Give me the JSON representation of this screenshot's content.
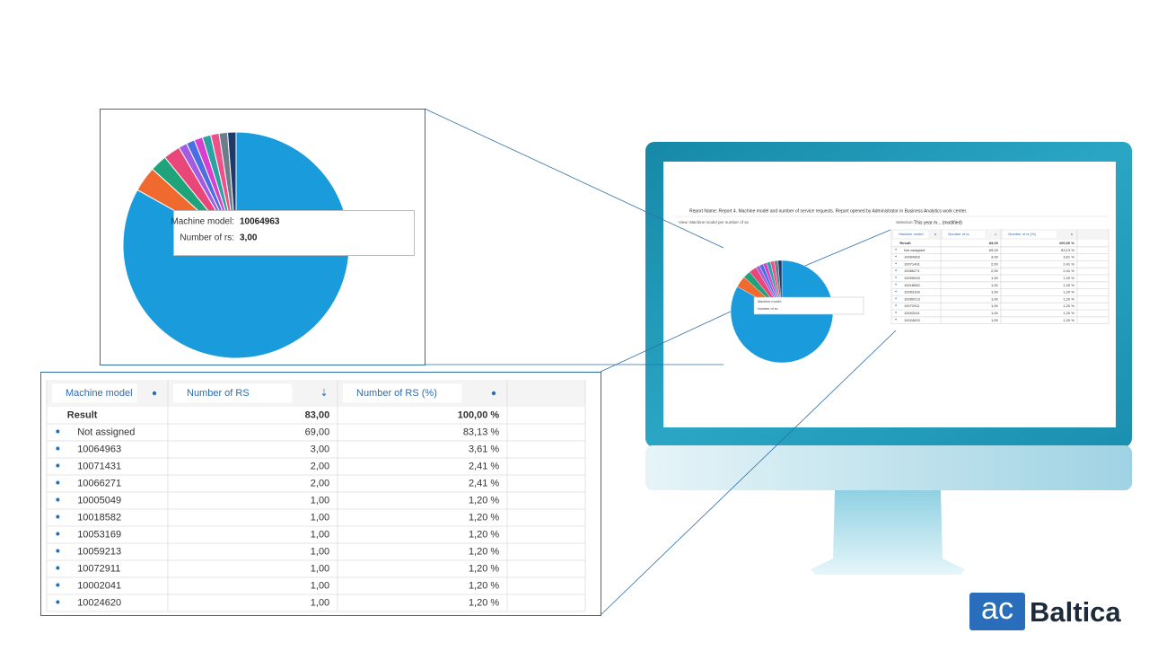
{
  "zoom_pie": {
    "tooltip": {
      "label1": "Machine model:",
      "value1": "10064963",
      "label2": "Number of rs:",
      "value2": "3,00"
    },
    "slice_colors": [
      "#1a9bdc",
      "#f06a2f",
      "#1fa37a",
      "#e9467a",
      "#a35be0",
      "#4b6fe0",
      "#d63fd0",
      "#2aa3a3",
      "#f0508a",
      "#6d7d8a",
      "#1d3a6b"
    ]
  },
  "table": {
    "headers": [
      "Machine model",
      "Number of RS",
      "Number of RS (%)"
    ],
    "rows": [
      [
        "Result",
        "83,00",
        "100,00 %"
      ],
      [
        "Not assigned",
        "69,00",
        "83,13 %"
      ],
      [
        "10064963",
        "3,00",
        "3,61 %"
      ],
      [
        "10071431",
        "2,00",
        "2,41 %"
      ],
      [
        "10066271",
        "2,00",
        "2,41 %"
      ],
      [
        "10005049",
        "1,00",
        "1,20 %"
      ],
      [
        "10018582",
        "1,00",
        "1,20 %"
      ],
      [
        "10053169",
        "1,00",
        "1,20 %"
      ],
      [
        "10059213",
        "1,00",
        "1,20 %"
      ],
      [
        "10072911",
        "1,00",
        "1,20 %"
      ],
      [
        "10002041",
        "1,00",
        "1,20 %"
      ],
      [
        "10024620",
        "1,00",
        "1,20 %"
      ]
    ]
  },
  "screen": {
    "report_title": "Report Name: Report 4. Machine model and number of service requests. Report opened by Administrator in Business Analytics work center.",
    "view": "View: Machine model per number of se",
    "selection_label": "Selection:",
    "selection": "This year m... (modified)",
    "mini_headers": [
      "Machine model",
      "Number of rs",
      "Number of rs (%)"
    ]
  },
  "logo": {
    "mark": "ac",
    "name": "Baltica"
  }
}
